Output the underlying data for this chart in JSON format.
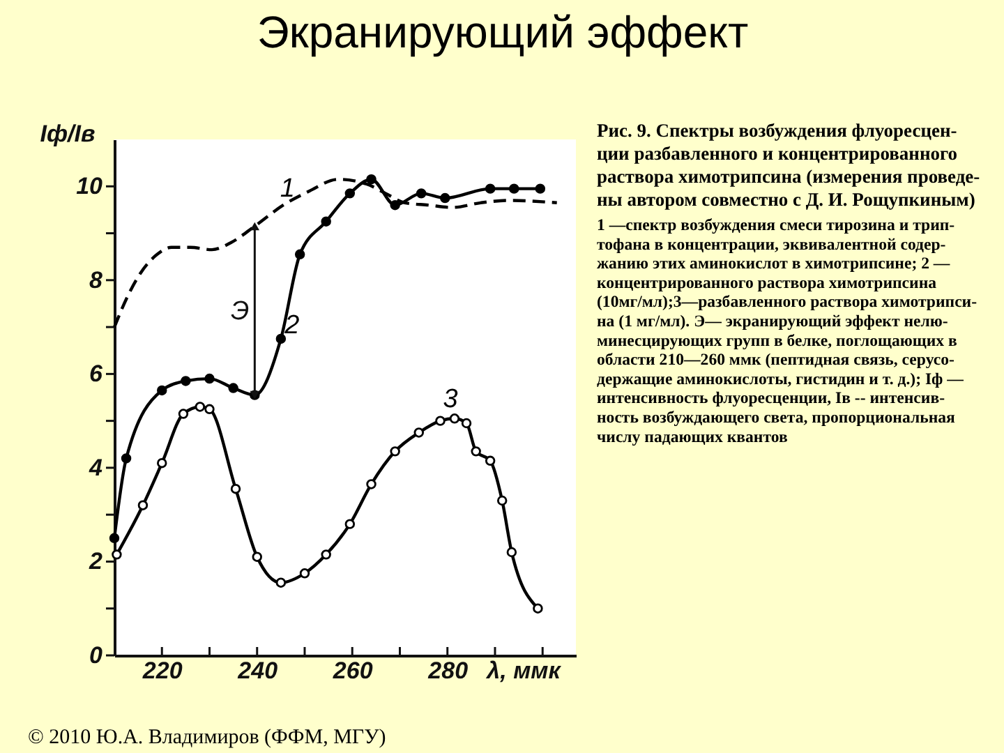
{
  "chart_data": {
    "type": "line",
    "title": "Экранирующий эффект",
    "xlabel": "λ, ммк",
    "ylabel": "Iф/Iв",
    "xlim": [
      210,
      307
    ],
    "ylim": [
      0,
      11
    ],
    "xticks": [
      220,
      {
        "value": 230,
        "label": null
      },
      240,
      {
        "value": 250,
        "label": null
      },
      260,
      {
        "value": 270,
        "label": null
      },
      280,
      {
        "value": 290,
        "label": null
      },
      {
        "value": 300,
        "label": null
      }
    ],
    "yticks": [
      0,
      {
        "value": 1,
        "label": null
      },
      2,
      {
        "value": 3,
        "label": null
      },
      4,
      {
        "value": 5,
        "label": null
      },
      6,
      {
        "value": 7,
        "label": null
      },
      8,
      {
        "value": 9,
        "label": null
      },
      10
    ],
    "series": [
      {
        "name": "1",
        "color": "#000000",
        "line_style": "dashed",
        "marker": "none",
        "x": [
          210,
          213,
          215.5,
          219,
          222,
          226,
          230.5,
          234.5,
          239.5,
          245.5,
          251,
          257,
          263,
          267,
          271,
          276,
          281,
          287,
          293,
          303
        ],
        "values": [
          7.0,
          7.7,
          8.15,
          8.55,
          8.7,
          8.7,
          8.65,
          8.8,
          9.15,
          9.6,
          9.9,
          10.15,
          10.05,
          9.85,
          9.65,
          9.6,
          9.55,
          9.65,
          9.7,
          9.65
        ]
      },
      {
        "name": "2",
        "color": "#000000",
        "line_style": "solid",
        "marker": "circle",
        "x": [
          210,
          212.5,
          220,
          225,
          230,
          235,
          239.5,
          245,
          249,
          254.5,
          259.5,
          264,
          269,
          274.5,
          279.5,
          289,
          294,
          299.5
        ],
        "values": [
          2.5,
          4.2,
          5.65,
          5.85,
          5.9,
          5.7,
          5.55,
          6.75,
          8.55,
          9.25,
          9.85,
          10.15,
          9.6,
          9.85,
          9.75,
          9.95,
          9.95,
          9.95
        ]
      },
      {
        "name": "3",
        "color": "#000000",
        "line_style": "solid",
        "marker": "circle",
        "colors": [
          "#ffffff",
          "#ffffff",
          "#ffffff",
          "#ffffff",
          "#ffffff",
          "#ffffff",
          "#ffffff",
          "#ffffff",
          "#ffffff",
          "#ffffff",
          "#ffffff",
          "#ffffff",
          "#ffffff",
          "#ffffff",
          "#ffffff",
          "#ffffff",
          "#ffffff",
          "#ffffff",
          "#ffffff",
          "#ffffff",
          "#ffffff",
          "#ffffff",
          "#ffffff"
        ],
        "x": [
          210.5,
          216,
          220,
          224.5,
          228,
          230,
          235.5,
          240,
          245,
          250,
          254.5,
          259.5,
          264,
          269,
          274,
          278.5,
          281.5,
          284,
          286,
          289,
          291.5,
          293.5,
          299
        ],
        "values": [
          2.15,
          3.2,
          4.1,
          5.15,
          5.3,
          5.25,
          3.55,
          2.1,
          1.55,
          1.75,
          2.15,
          2.8,
          3.65,
          4.35,
          4.75,
          5.0,
          5.05,
          4.95,
          4.35,
          4.15,
          3.3,
          2.2,
          1.0
        ]
      }
    ],
    "annotations": [
      {
        "text": "Э",
        "x": 239.5,
        "y": 9.15
      },
      "Рис. 9. Спектры возбуждения флуоресцен-\nции разбавленного и концентрированного\nраствора химотрипсина (измерения проведе-\nны автором совместно с Д. И. Рощупкиным)",
      "1 —спектр возбуждения смеси тирозина и трип-\nтофана в концентрации, эквивалентной содер-\nжанию этих аминокислот в химотрипсине; 2 —\nконцентрированного раствора химотрипсина\n(10мг/мл);3—разбавленного раствора химотрипси-\nна (1 мг/мл). Э— экранирующий эффект нелю-\nминесцирующих групп в белке, поглощающих в\nобласти 210—260 ммк (пептидная связь, серусо-\nдержащие аминокислоты, гистидин и т. д.); Iф —\nинтенсивность флуоресценции, Iв -- интенсив-\nность возбуждающего света, пропорциональная\nчислу падающих квантов",
      "© 2010 Ю.А. Владимиров (ФФМ, МГУ)"
    ]
  }
}
